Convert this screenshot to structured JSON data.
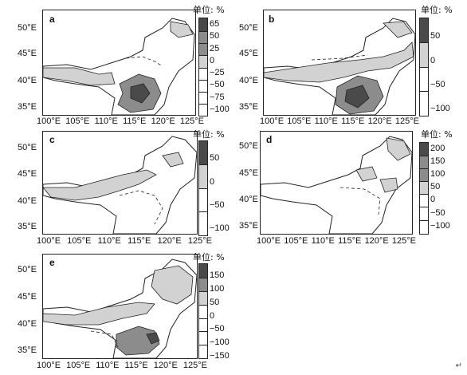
{
  "unit_label": "单位: %",
  "return_mark": "↵",
  "y_ticks": [
    "50°E",
    "45°E",
    "40°E",
    "35°E"
  ],
  "x_ticks": [
    "100°E",
    "105°E",
    "110°E",
    "115°E",
    "120°E",
    "125°E"
  ],
  "panels": [
    {
      "letter": "a",
      "colorbar": [
        "65",
        "50",
        "25",
        "0",
        "−25",
        "−50",
        "−75",
        "−100"
      ]
    },
    {
      "letter": "b",
      "colorbar": [
        "50",
        "0",
        "−50",
        "−100"
      ]
    },
    {
      "letter": "c",
      "colorbar": [
        "50",
        "0",
        "−50",
        "−100"
      ]
    },
    {
      "letter": "d",
      "colorbar": [
        "200",
        "150",
        "100",
        "50",
        "0",
        "−50",
        "−100"
      ]
    },
    {
      "letter": "e",
      "colorbar": [
        "150",
        "100",
        "50",
        "0",
        "−50",
        "−100",
        "−150"
      ]
    }
  ],
  "colors": {
    "dark": "#4a4a4a",
    "mid": "#8c8c8c",
    "light": "#d2d2d2",
    "white": "#ffffff",
    "border": "#222222"
  }
}
